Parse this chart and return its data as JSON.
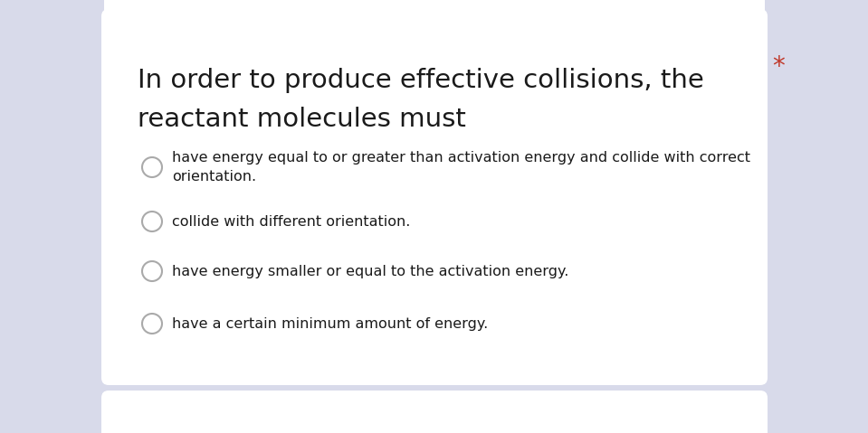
{
  "bg_color": "#d8daea",
  "card_color": "#ffffff",
  "question_line1": "In order to produce effective collisions, the",
  "question_line2": "reactant molecules must",
  "asterisk": "*",
  "asterisk_color": "#c0392b",
  "options": [
    "have energy equal to or greater than activation energy and collide with correct\norientation.",
    "collide with different orientation.",
    "have energy smaller or equal to the activation energy.",
    "have a certain minimum amount of energy."
  ],
  "question_fontsize": 21,
  "option_fontsize": 11.5,
  "asterisk_fontsize": 20
}
